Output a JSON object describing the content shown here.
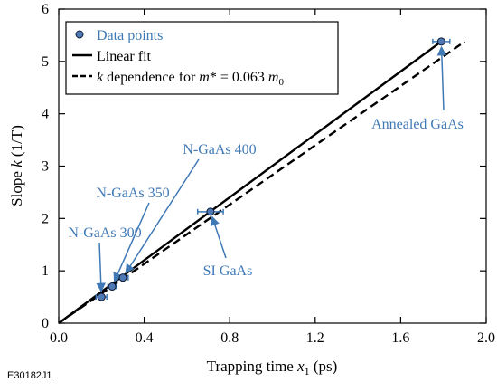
{
  "figure_id": "E30182J1",
  "colors": {
    "marker_fill": "#4f79b5",
    "marker_edge": "#0a1a33",
    "annotation": "#3f79b5",
    "axis": "#000000",
    "fit_line": "#000000"
  },
  "chart_data": {
    "type": "scatter",
    "title": "",
    "xlabel": {
      "prefix": "Trapping time ",
      "var": "x",
      "sub": "1",
      "suffix": " (ps)"
    },
    "ylabel": {
      "prefix": "Slope ",
      "var": "k",
      "suffix": " (1/T)"
    },
    "xlim": [
      0.0,
      2.0
    ],
    "ylim": [
      0,
      6
    ],
    "xticks": [
      0.0,
      0.4,
      0.8,
      1.2,
      1.6,
      2.0
    ],
    "xtick_labels": [
      "0.0",
      "0.4",
      "0.8",
      "1.2",
      "1.6",
      "2.0"
    ],
    "yticks": [
      0,
      1,
      2,
      3,
      4,
      5,
      6
    ],
    "ytick_labels": [
      "0",
      "1",
      "2",
      "3",
      "4",
      "5",
      "6"
    ],
    "grid": false,
    "legend_position": "top-left",
    "legend": {
      "data_points": "Data points",
      "linear_fit": "Linear fit",
      "k_dependence": {
        "k": "k",
        "text1": " dependence for ",
        "m": "m",
        "text2": "* = 0.063 ",
        "m0": "m",
        "m0_sub": "0"
      }
    },
    "series": [
      {
        "name": "Data points",
        "x": [
          0.2,
          0.25,
          0.3,
          0.71,
          1.79
        ],
        "y": [
          0.5,
          0.7,
          0.87,
          2.13,
          5.38
        ],
        "xerr": [
          0.025,
          0.02,
          0.025,
          0.06,
          0.04
        ]
      },
      {
        "name": "Linear fit",
        "style": "solid",
        "x": [
          0.0,
          1.79
        ],
        "y": [
          0.0,
          5.38
        ]
      },
      {
        "name": "k dependence for m* = 0.063 m0",
        "style": "dashed",
        "x": [
          0.0,
          1.9
        ],
        "y": [
          0.0,
          5.38
        ]
      }
    ],
    "annotations": [
      {
        "label": "N-GaAs 300",
        "x": 0.2,
        "y": 0.5
      },
      {
        "label": "N-GaAs 350",
        "x": 0.25,
        "y": 0.7
      },
      {
        "label": "N-GaAs 400",
        "x": 0.3,
        "y": 0.87
      },
      {
        "label": "SI GaAs",
        "x": 0.71,
        "y": 2.13
      },
      {
        "label": "Annealed GaAs",
        "x": 1.79,
        "y": 5.38
      }
    ]
  }
}
